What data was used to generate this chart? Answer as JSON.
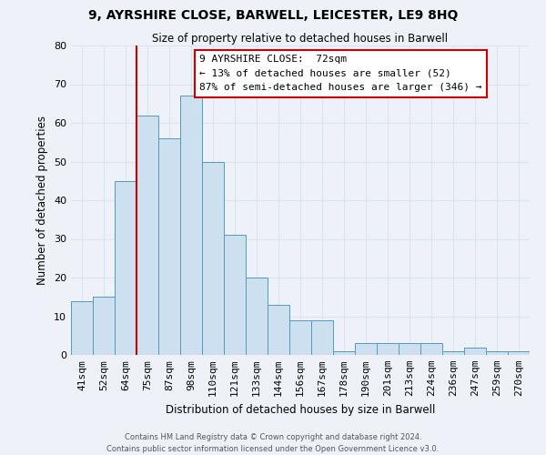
{
  "title": "9, AYRSHIRE CLOSE, BARWELL, LEICESTER, LE9 8HQ",
  "subtitle": "Size of property relative to detached houses in Barwell",
  "xlabel": "Distribution of detached houses by size in Barwell",
  "ylabel": "Number of detached properties",
  "categories": [
    "41sqm",
    "52sqm",
    "64sqm",
    "75sqm",
    "87sqm",
    "98sqm",
    "110sqm",
    "121sqm",
    "133sqm",
    "144sqm",
    "156sqm",
    "167sqm",
    "178sqm",
    "190sqm",
    "201sqm",
    "213sqm",
    "224sqm",
    "236sqm",
    "247sqm",
    "259sqm",
    "270sqm"
  ],
  "values": [
    14,
    15,
    45,
    62,
    56,
    67,
    50,
    31,
    20,
    13,
    9,
    9,
    1,
    3,
    3,
    3,
    3,
    1,
    2,
    1,
    1
  ],
  "bar_color": "#cce0f0",
  "bar_edge_color": "#5599bb",
  "vline_color": "#cc0000",
  "annotation_text": "9 AYRSHIRE CLOSE:  72sqm\n← 13% of detached houses are smaller (52)\n87% of semi-detached houses are larger (346) →",
  "ylim": [
    0,
    80
  ],
  "yticks": [
    0,
    10,
    20,
    30,
    40,
    50,
    60,
    70,
    80
  ],
  "grid_color": "#d8e4f0",
  "background_color": "#eef2f8",
  "footer_line1": "Contains HM Land Registry data © Crown copyright and database right 2024.",
  "footer_line2": "Contains public sector information licensed under the Open Government Licence v3.0."
}
